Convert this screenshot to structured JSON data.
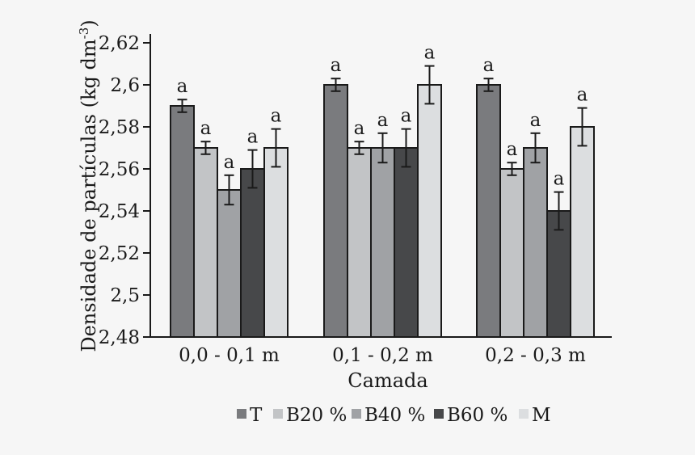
{
  "page": {
    "background_color": "#f6f6f6",
    "axis_color": "#1a1a1a"
  },
  "chart_data": {
    "type": "bar",
    "title": "",
    "xlabel": "Camada",
    "ylabel": "Densidade de partículas (kg dm⁻³)",
    "ylabel_main": "Densidade de partículas (kg dm",
    "ylabel_sup": "-3",
    "ylabel_close": ")",
    "ylim": [
      2.48,
      2.62
    ],
    "yticks": [
      {
        "value": 2.48,
        "label": "2,48"
      },
      {
        "value": 2.5,
        "label": "2,5"
      },
      {
        "value": 2.52,
        "label": "2,52"
      },
      {
        "value": 2.54,
        "label": "2,54"
      },
      {
        "value": 2.56,
        "label": "2,56"
      },
      {
        "value": 2.58,
        "label": "2,58"
      },
      {
        "value": 2.6,
        "label": "2,6"
      },
      {
        "value": 2.62,
        "label": "2,62"
      }
    ],
    "decimal_separator": ",",
    "grid": false,
    "legend_position": "bottom",
    "categories": [
      "0,0 - 0,1 m",
      "0,1 - 0,2 m",
      "0,2 - 0,3 m"
    ],
    "series": [
      {
        "name": "T",
        "color": "#7a7b7e",
        "values": [
          2.59,
          2.6,
          2.6
        ],
        "errors": [
          0.003,
          0.003,
          0.003
        ],
        "sig_labels": [
          "a",
          "a",
          "a"
        ]
      },
      {
        "name": "B20 %",
        "color": "#c2c4c6",
        "values": [
          2.57,
          2.57,
          2.56
        ],
        "errors": [
          0.003,
          0.003,
          0.003
        ],
        "sig_labels": [
          "a",
          "a",
          "a"
        ]
      },
      {
        "name": "B40 %",
        "color": "#a0a2a5",
        "values": [
          2.55,
          2.57,
          2.57
        ],
        "errors": [
          0.007,
          0.007,
          0.007
        ],
        "sig_labels": [
          "a",
          "a",
          "a"
        ]
      },
      {
        "name": "B60 %",
        "color": "#47484a",
        "values": [
          2.56,
          2.57,
          2.54
        ],
        "errors": [
          0.009,
          0.009,
          0.009
        ],
        "sig_labels": [
          "a",
          "a",
          "a"
        ]
      },
      {
        "name": "M",
        "color": "#dcdee0",
        "values": [
          2.57,
          2.6,
          2.58
        ],
        "errors": [
          0.009,
          0.009,
          0.009
        ],
        "sig_labels": [
          "a",
          "a",
          "a"
        ]
      }
    ]
  }
}
